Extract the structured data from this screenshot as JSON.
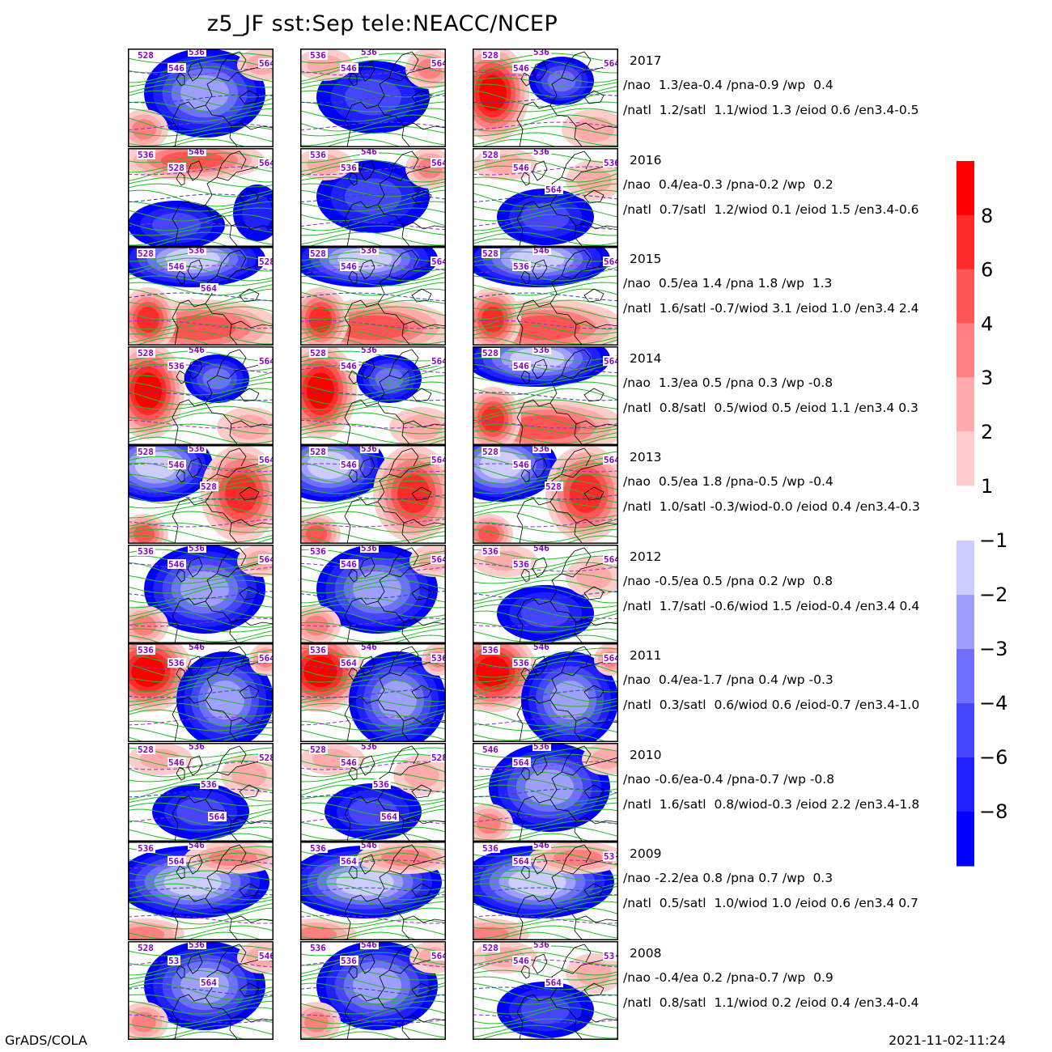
{
  "title": "z5_JF  sst:Sep  tele:NEACC/NCEP",
  "footer": {
    "left": "GrADS/COLA",
    "right": "2021-11-02-11:24"
  },
  "colorbar": {
    "positive": {
      "labels": [
        "8",
        "6",
        "4",
        "3",
        "2",
        "1"
      ],
      "colors": [
        "#ff0000",
        "#ff2a2a",
        "#ff5555",
        "#ff8080",
        "#ffabab",
        "#ffcccc"
      ]
    },
    "negative": {
      "labels": [
        "-1",
        "-2",
        "-3",
        "-4",
        "-6",
        "-8"
      ],
      "colors": [
        "#ccccff",
        "#9f9fff",
        "#7070ff",
        "#4545ff",
        "#2020ff",
        "#0000ff"
      ]
    }
  },
  "rows": [
    {
      "year": "2017",
      "line1": "/nao  1.3/ea-0.4 /pna-0.9 /wp  0.4",
      "line2": "/natl  1.2/satl  1.1/wiod 1.3 /eiod 0.6 /en3.4-0.5",
      "panels": [
        {
          "pattern": "neg-center",
          "labels": [
            "528",
            "536",
            "546",
            "564"
          ]
        },
        {
          "pattern": "mixed",
          "labels": [
            "536",
            "536",
            "546",
            "564"
          ]
        },
        {
          "pattern": "pos-west",
          "labels": [
            "528",
            "536",
            "546",
            "564"
          ]
        }
      ]
    },
    {
      "year": "2016",
      "line1": "/nao  0.4/ea-0.3 /pna-0.2 /wp  0.2",
      "line2": "/natl  0.7/satl  1.2/wiod 0.1 /eiod 1.5 /en3.4-0.6",
      "panels": [
        {
          "pattern": "pos-north",
          "labels": [
            "536",
            "546",
            "528",
            "564"
          ]
        },
        {
          "pattern": "mixed",
          "labels": [
            "536",
            "546",
            "536",
            "564"
          ]
        },
        {
          "pattern": "weak",
          "labels": [
            "528",
            "536",
            "546",
            "536",
            "564"
          ]
        }
      ]
    },
    {
      "year": "2015",
      "line1": "/nao  0.5/ea 1.4 /pna 1.8 /wp  1.3",
      "line2": "/natl  1.6/satl -0.7/wiod 3.1 /eiod 1.0 /en3.4 2.4",
      "panels": [
        {
          "pattern": "neg-north-pos-south",
          "labels": [
            "528",
            "536",
            "546",
            "528",
            "564"
          ]
        },
        {
          "pattern": "neg-north-pos-south",
          "labels": [
            "528",
            "536",
            "546",
            "564"
          ]
        },
        {
          "pattern": "neg-north-pos-south",
          "labels": [
            "528",
            "546",
            "536",
            "564"
          ]
        }
      ]
    },
    {
      "year": "2014",
      "line1": "/nao  1.3/ea 0.5 /pna 0.3 /wp -0.8",
      "line2": "/natl  0.8/satl  0.5/wiod 0.5 /eiod 1.1 /en3.4 0.3",
      "panels": [
        {
          "pattern": "pos-west",
          "labels": [
            "528",
            "546",
            "536",
            "564"
          ]
        },
        {
          "pattern": "pos-west",
          "labels": [
            "528",
            "536",
            "546",
            "564"
          ]
        },
        {
          "pattern": "neg-north-pos-south",
          "labels": [
            "528",
            "536",
            "546",
            "564"
          ]
        }
      ]
    },
    {
      "year": "2013",
      "line1": "/nao  0.5/ea 1.8 /pna-0.5 /wp -0.4",
      "line2": "/natl  1.0/satl -0.3/wiod-0.0 /eiod 0.4 /en3.4-0.3",
      "panels": [
        {
          "pattern": "neg-nw-pos-east",
          "labels": [
            "528",
            "536",
            "546",
            "564",
            "528"
          ]
        },
        {
          "pattern": "neg-nw-pos-east",
          "labels": [
            "528",
            "536",
            "546",
            "564"
          ]
        },
        {
          "pattern": "neg-nw-pos-east",
          "labels": [
            "528",
            "536",
            "546",
            "564",
            "528"
          ]
        }
      ]
    },
    {
      "year": "2012",
      "line1": "/nao -0.5/ea 0.5 /pna 0.2 /wp  0.8",
      "line2": "/natl  1.7/satl -0.6/wiod 1.5 /eiod-0.4 /en3.4 0.4",
      "panels": [
        {
          "pattern": "neg-center",
          "labels": [
            "536",
            "536",
            "546",
            "564"
          ]
        },
        {
          "pattern": "neg-center",
          "labels": [
            "536",
            "536",
            "546",
            "564"
          ]
        },
        {
          "pattern": "weak",
          "labels": [
            "536",
            "546",
            "536",
            "564"
          ]
        }
      ]
    },
    {
      "year": "2011",
      "line1": "/nao  0.4/ea-1.7 /pna 0.4 /wp -0.3",
      "line2": "/natl  0.3/satl  0.6/wiod 0.6 /eiod-0.7 /en3.4-1.0",
      "panels": [
        {
          "pattern": "pos-nw-neg-east",
          "labels": [
            "536",
            "546",
            "536",
            "564"
          ]
        },
        {
          "pattern": "pos-nw-neg-east",
          "labels": [
            "536",
            "546",
            "564",
            "536"
          ]
        },
        {
          "pattern": "pos-nw-neg-east",
          "labels": [
            "536",
            "546",
            "536",
            "564"
          ]
        }
      ]
    },
    {
      "year": "2010",
      "line1": "/nao -0.6/ea-0.4 /pna-0.7 /wp -0.8",
      "line2": "/natl  1.6/satl  0.8/wiod-0.3 /eiod 2.2 /en3.4-1.8",
      "panels": [
        {
          "pattern": "weak",
          "labels": [
            "528",
            "536",
            "546",
            "528",
            "536",
            "564"
          ]
        },
        {
          "pattern": "weak",
          "labels": [
            "528",
            "536",
            "546",
            "528",
            "536",
            "564"
          ]
        },
        {
          "pattern": "neg-center",
          "labels": [
            "546",
            "536",
            "564"
          ]
        }
      ]
    },
    {
      "year": "2009",
      "line1": "/nao -2.2/ea 0.8 /pna 0.7 /wp  0.3",
      "line2": "/natl  0.5/satl  1.0/wiod 1.0 /eiod 0.6 /en3.4 0.7",
      "panels": [
        {
          "pattern": "neg-strong",
          "labels": [
            "536",
            "546",
            "564"
          ]
        },
        {
          "pattern": "neg-strong",
          "labels": [
            "536",
            "546",
            "564"
          ]
        },
        {
          "pattern": "neg-strong",
          "labels": [
            "536",
            "546",
            "564",
            "53"
          ]
        }
      ]
    },
    {
      "year": "2008",
      "line1": "/nao -0.4/ea 0.2 /pna-0.7 /wp  0.9",
      "line2": "/natl  0.8/satl  1.1/wiod 0.2 /eiod 0.4 /en3.4-0.4",
      "panels": [
        {
          "pattern": "neg-center",
          "labels": [
            "528",
            "536",
            "53",
            "546",
            "564"
          ]
        },
        {
          "pattern": "neg-center",
          "labels": [
            "536",
            "546",
            "536",
            "564"
          ]
        },
        {
          "pattern": "weak",
          "labels": [
            "528",
            "536",
            "546",
            "53",
            "564"
          ]
        }
      ]
    }
  ]
}
